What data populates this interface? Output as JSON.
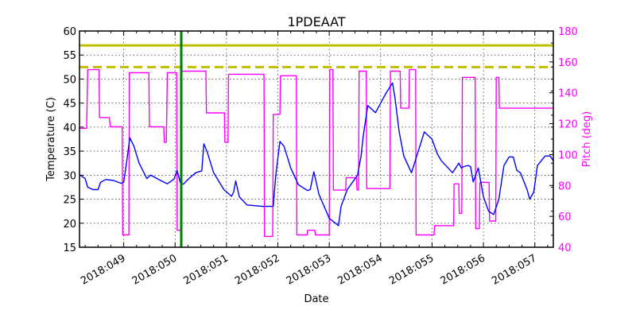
{
  "chart_data": {
    "type": "line",
    "title": "1PDEAAT",
    "xlabel": "Date",
    "ylabel": "Temperature (C)",
    "ylabel_right": "Pitch (deg)",
    "ylim": [
      15,
      60
    ],
    "ylim_right": [
      40,
      180
    ],
    "xlim": [
      48.14,
      57.36
    ],
    "grid": true,
    "x_ticks": [
      {
        "value": 49,
        "label": "2018:049"
      },
      {
        "value": 50,
        "label": "2018:050"
      },
      {
        "value": 51,
        "label": "2018:051"
      },
      {
        "value": 52,
        "label": "2018:052"
      },
      {
        "value": 53,
        "label": "2018:053"
      },
      {
        "value": 54,
        "label": "2018:054"
      },
      {
        "value": 55,
        "label": "2018:055"
      },
      {
        "value": 56,
        "label": "2018:056"
      },
      {
        "value": 57,
        "label": "2018:057"
      }
    ],
    "y_ticks": [
      15,
      20,
      25,
      30,
      35,
      40,
      45,
      50,
      55,
      60
    ],
    "y_ticks_right": [
      40,
      60,
      80,
      100,
      120,
      140,
      160,
      180
    ],
    "colors": {
      "temperature": "#0000ff",
      "pitch": "#ff00ff",
      "planning_limit": "#bfbf00",
      "caution_limit": "#bfbf00",
      "now_marker": "#008000"
    },
    "reference_lines": [
      {
        "name": "limit-solid",
        "axis": "left",
        "y": 57.0,
        "style": "solid"
      },
      {
        "name": "limit-dashed",
        "axis": "left",
        "y": 52.5,
        "style": "dashed"
      }
    ],
    "vertical_markers": [
      {
        "name": "current-time",
        "x": 50.12
      }
    ],
    "series": [
      {
        "name": "Temperature",
        "axis": "left",
        "x": [
          48.14,
          48.25,
          48.3,
          48.4,
          48.5,
          48.55,
          48.65,
          48.8,
          48.95,
          49.0,
          49.06,
          49.12,
          49.2,
          49.3,
          49.45,
          49.52,
          49.58,
          49.7,
          49.85,
          49.98,
          50.04,
          50.1,
          50.16,
          50.24,
          50.4,
          50.52,
          50.56,
          50.62,
          50.75,
          50.95,
          51.1,
          51.14,
          51.18,
          51.25,
          51.4,
          51.7,
          51.91,
          51.96,
          52.04,
          52.12,
          52.25,
          52.4,
          52.58,
          52.63,
          52.7,
          52.8,
          53.0,
          53.18,
          53.23,
          53.35,
          53.55,
          53.62,
          53.66,
          53.75,
          53.9,
          54.1,
          54.23,
          54.28,
          54.36,
          54.45,
          54.6,
          54.85,
          55.0,
          55.05,
          55.1,
          55.18,
          55.4,
          55.52,
          55.57,
          55.62,
          55.7,
          55.75,
          55.8,
          55.9,
          56.0,
          56.1,
          56.2,
          56.3,
          56.4,
          56.5,
          56.58,
          56.65,
          56.72,
          56.85,
          56.9,
          56.98,
          57.05,
          57.2,
          57.3,
          57.36
        ],
        "values": [
          30.1,
          29.3,
          27.5,
          27.0,
          27.0,
          28.5,
          29.1,
          28.9,
          28.3,
          28.5,
          33.0,
          37.8,
          36.0,
          32.5,
          29.3,
          30.0,
          29.7,
          29.0,
          28.2,
          29.2,
          31.0,
          28.5,
          28.1,
          29.0,
          30.5,
          30.9,
          36.5,
          35.0,
          30.5,
          27.0,
          25.6,
          26.5,
          28.8,
          25.5,
          23.8,
          23.5,
          23.5,
          30.0,
          37.0,
          36.0,
          31.5,
          28.0,
          26.8,
          27.0,
          30.7,
          26.0,
          21.0,
          19.5,
          23.5,
          27.0,
          30.0,
          34.0,
          38.0,
          44.5,
          43.0,
          47.0,
          49.2,
          46.0,
          39.0,
          34.0,
          30.5,
          39.0,
          37.5,
          36.0,
          34.5,
          33.0,
          30.5,
          32.5,
          31.5,
          31.8,
          32.0,
          31.8,
          28.6,
          31.5,
          25.5,
          22.5,
          21.8,
          25.0,
          32.0,
          33.8,
          33.8,
          31.0,
          30.5,
          27.0,
          25.0,
          26.5,
          32.0,
          34.0,
          34.0,
          33.0
        ]
      },
      {
        "name": "Pitch",
        "axis": "right",
        "x": [
          48.14,
          48.28,
          48.3,
          48.52,
          48.53,
          48.72,
          48.74,
          48.97,
          48.98,
          49.1,
          49.11,
          49.49,
          49.5,
          49.78,
          49.79,
          49.83,
          49.85,
          49.97,
          49.98,
          50.03,
          50.04,
          50.11,
          50.12,
          50.15,
          50.16,
          50.6,
          50.61,
          50.96,
          50.97,
          51.03,
          51.04,
          51.73,
          51.74,
          51.9,
          51.91,
          52.04,
          52.05,
          52.36,
          52.37,
          52.57,
          52.58,
          52.65,
          52.66,
          52.72,
          52.73,
          53.0,
          53.01,
          53.07,
          53.08,
          53.32,
          53.33,
          53.53,
          53.54,
          53.57,
          53.58,
          53.72,
          53.73,
          54.18,
          54.19,
          54.38,
          54.39,
          54.55,
          54.56,
          54.68,
          54.69,
          55.04,
          55.05,
          55.42,
          55.43,
          55.52,
          55.53,
          55.58,
          55.59,
          55.84,
          55.85,
          55.92,
          55.93,
          56.11,
          56.12,
          56.24,
          56.25,
          56.3,
          56.31,
          56.52,
          56.53,
          56.74,
          56.75,
          56.82,
          56.83,
          57.16,
          57.17,
          57.27,
          57.28,
          57.36
        ],
        "values": [
          117,
          117,
          155,
          155,
          124,
          124,
          118,
          118,
          48,
          48,
          153,
          153,
          118,
          118,
          108,
          108,
          153,
          153,
          153,
          153,
          51,
          51,
          154,
          154,
          154,
          154,
          127,
          127,
          108,
          108,
          152,
          152,
          47,
          47,
          126,
          126,
          151,
          151,
          48,
          48,
          51,
          51,
          51,
          51,
          48,
          48,
          155,
          155,
          77,
          77,
          85,
          85,
          77,
          77,
          154,
          154,
          78,
          78,
          154,
          154,
          130,
          130,
          155,
          155,
          48,
          48,
          54,
          54,
          81,
          81,
          62,
          62,
          150,
          150,
          52,
          52,
          82,
          82,
          57,
          57,
          150,
          150,
          130,
          130,
          130,
          130,
          130,
          130,
          130,
          130,
          130,
          130,
          130,
          130
        ]
      }
    ]
  }
}
